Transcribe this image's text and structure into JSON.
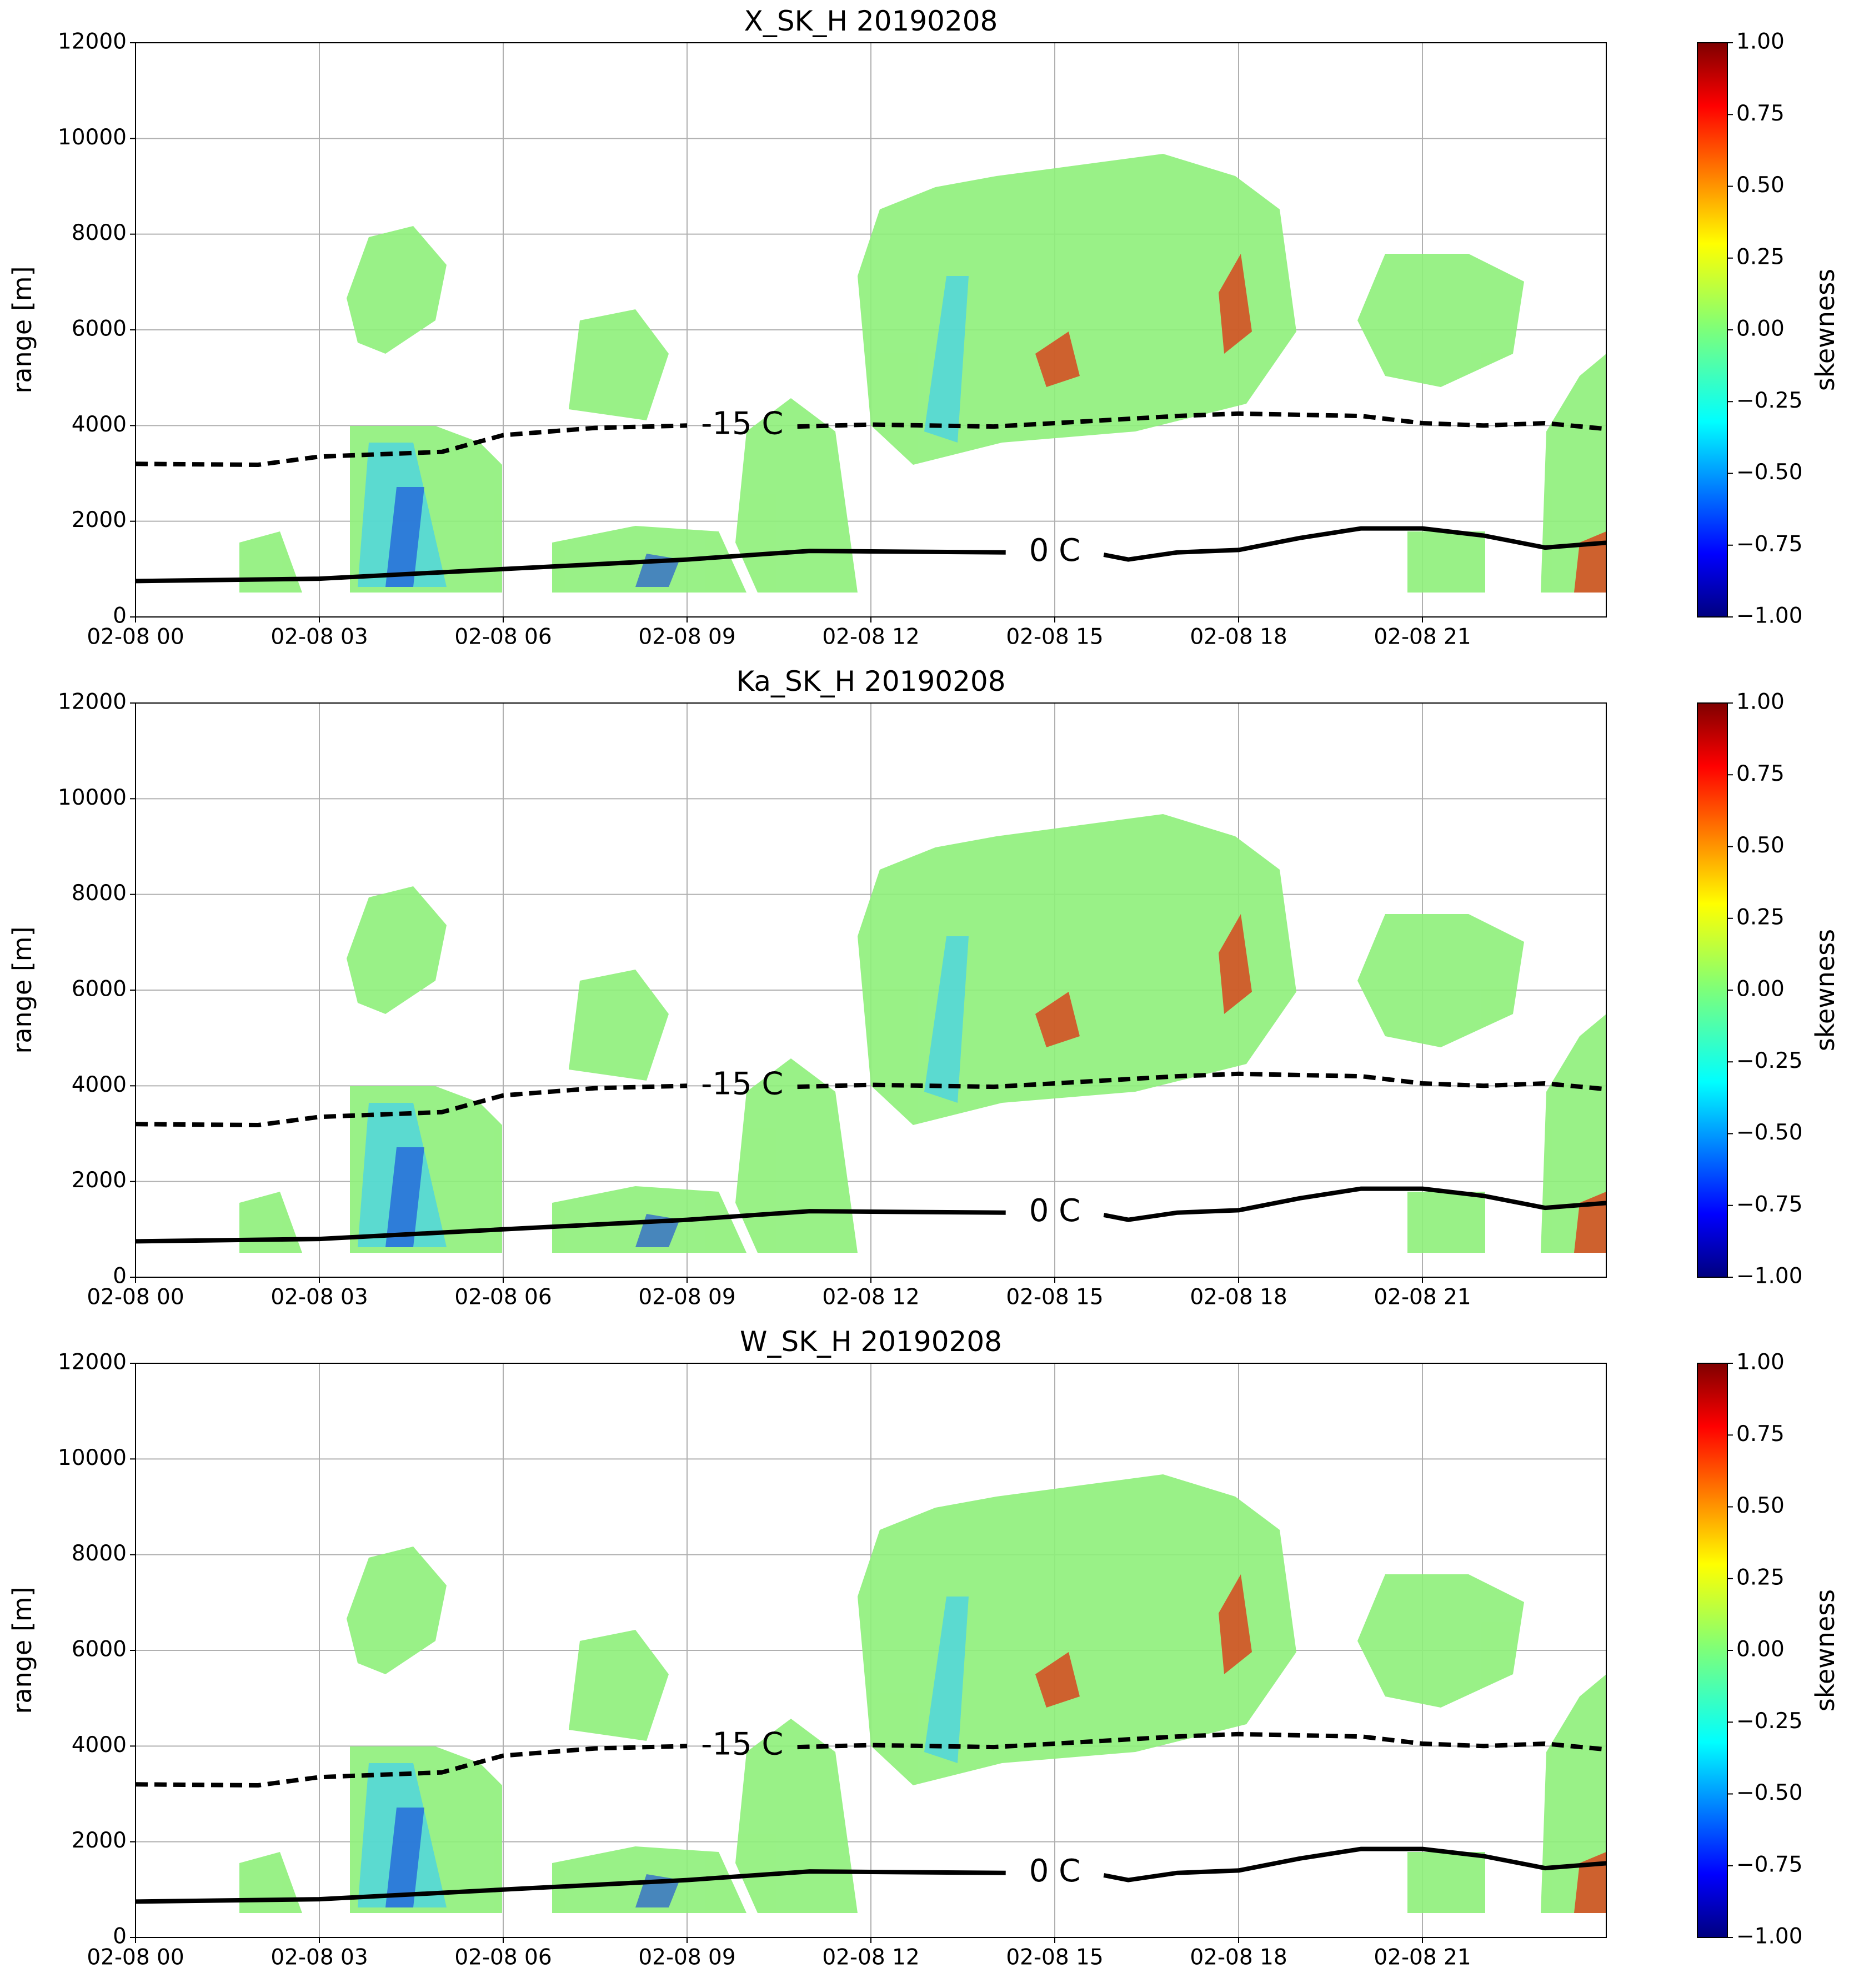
{
  "chart_data": [
    {
      "type": "heatmap",
      "title": "X_SK_H 20190208",
      "y_label": "range [m]",
      "grid": true,
      "xlim": [
        0,
        24
      ],
      "xticks": [
        {
          "value": 0,
          "label": "02-08 00"
        },
        {
          "value": 3,
          "label": "02-08 03"
        },
        {
          "value": 6,
          "label": "02-08 06"
        },
        {
          "value": 9,
          "label": "02-08 09"
        },
        {
          "value": 12,
          "label": "02-08 12"
        },
        {
          "value": 15,
          "label": "02-08 15"
        },
        {
          "value": 18,
          "label": "02-08 18"
        },
        {
          "value": 21,
          "label": "02-08 21"
        }
      ],
      "ylim": [
        0,
        12000
      ],
      "yticks": [
        0,
        2000,
        4000,
        6000,
        8000,
        10000,
        12000
      ],
      "colorbar": {
        "label": "skewness",
        "lim": [
          -1,
          1
        ],
        "ticks": [
          {
            "value": 1,
            "label": "1.00"
          },
          {
            "value": 0.75,
            "label": "0.75"
          },
          {
            "value": 0.5,
            "label": "0.50"
          },
          {
            "value": 0.25,
            "label": "0.25"
          },
          {
            "value": 0,
            "label": "0.00"
          },
          {
            "value": -0.25,
            "label": "−0.25"
          },
          {
            "value": -0.5,
            "label": "−0.50"
          },
          {
            "value": -0.75,
            "label": "−0.75"
          },
          {
            "value": -1,
            "label": "−1.00"
          }
        ]
      },
      "series": [
        {
          "style": "dashed",
          "color": "#000000",
          "x": [
            0,
            2,
            3,
            5,
            6,
            7.5,
            9,
            null,
            10.8,
            12,
            14,
            15,
            17,
            18,
            20,
            21,
            22,
            23,
            24
          ],
          "y": [
            3200,
            3180,
            3350,
            3450,
            3800,
            3950,
            4000,
            null,
            3980,
            4020,
            3980,
            4050,
            4200,
            4250,
            4200,
            4050,
            4000,
            4050,
            3930
          ],
          "label": {
            "text": "-15 C",
            "x": 9.9,
            "y": 4000
          }
        },
        {
          "style": "solid",
          "color": "#000000",
          "x": [
            0,
            3,
            6,
            9,
            11,
            12,
            14.2,
            null,
            15.8,
            16.2,
            17,
            18,
            19,
            20,
            21,
            22,
            23,
            24
          ],
          "y": [
            750,
            800,
            1000,
            1200,
            1380,
            1370,
            1350,
            null,
            1300,
            1200,
            1350,
            1400,
            1650,
            1850,
            1850,
            1700,
            1450,
            1550
          ],
          "label": {
            "text": "0 C",
            "x": 15,
            "y": 1350
          }
        }
      ]
    },
    {
      "type": "heatmap",
      "title": "Ka_SK_H 20190208",
      "y_label": "range [m]",
      "grid": true,
      "xlim": [
        0,
        24
      ],
      "xticks": [
        {
          "value": 0,
          "label": "02-08 00"
        },
        {
          "value": 3,
          "label": "02-08 03"
        },
        {
          "value": 6,
          "label": "02-08 06"
        },
        {
          "value": 9,
          "label": "02-08 09"
        },
        {
          "value": 12,
          "label": "02-08 12"
        },
        {
          "value": 15,
          "label": "02-08 15"
        },
        {
          "value": 18,
          "label": "02-08 18"
        },
        {
          "value": 21,
          "label": "02-08 21"
        }
      ],
      "ylim": [
        0,
        12000
      ],
      "yticks": [
        0,
        2000,
        4000,
        6000,
        8000,
        10000,
        12000
      ],
      "colorbar": {
        "label": "skewness",
        "lim": [
          -1,
          1
        ],
        "ticks": [
          {
            "value": 1,
            "label": "1.00"
          },
          {
            "value": 0.75,
            "label": "0.75"
          },
          {
            "value": 0.5,
            "label": "0.50"
          },
          {
            "value": 0.25,
            "label": "0.25"
          },
          {
            "value": 0,
            "label": "0.00"
          },
          {
            "value": -0.25,
            "label": "−0.25"
          },
          {
            "value": -0.5,
            "label": "−0.50"
          },
          {
            "value": -0.75,
            "label": "−0.75"
          },
          {
            "value": -1,
            "label": "−1.00"
          }
        ]
      },
      "series": [
        {
          "style": "dashed",
          "color": "#000000",
          "x": [
            0,
            2,
            3,
            5,
            6,
            7.5,
            9,
            null,
            10.8,
            12,
            14,
            15,
            17,
            18,
            20,
            21,
            22,
            23,
            24
          ],
          "y": [
            3200,
            3180,
            3350,
            3450,
            3800,
            3950,
            4000,
            null,
            3980,
            4020,
            3980,
            4050,
            4200,
            4250,
            4200,
            4050,
            4000,
            4050,
            3930
          ],
          "label": {
            "text": "-15 C",
            "x": 9.9,
            "y": 4000
          }
        },
        {
          "style": "solid",
          "color": "#000000",
          "x": [
            0,
            3,
            6,
            9,
            11,
            12,
            14.2,
            null,
            15.8,
            16.2,
            17,
            18,
            19,
            20,
            21,
            22,
            23,
            24
          ],
          "y": [
            750,
            800,
            1000,
            1200,
            1380,
            1370,
            1350,
            null,
            1300,
            1200,
            1350,
            1400,
            1650,
            1850,
            1850,
            1700,
            1450,
            1550
          ],
          "label": {
            "text": "0 C",
            "x": 15,
            "y": 1350
          }
        }
      ]
    },
    {
      "type": "heatmap",
      "title": "W_SK_H 20190208",
      "y_label": "range [m]",
      "grid": true,
      "xlim": [
        0,
        24
      ],
      "xticks": [
        {
          "value": 0,
          "label": "02-08 00"
        },
        {
          "value": 3,
          "label": "02-08 03"
        },
        {
          "value": 6,
          "label": "02-08 06"
        },
        {
          "value": 9,
          "label": "02-08 09"
        },
        {
          "value": 12,
          "label": "02-08 12"
        },
        {
          "value": 15,
          "label": "02-08 15"
        },
        {
          "value": 18,
          "label": "02-08 18"
        },
        {
          "value": 21,
          "label": "02-08 21"
        }
      ],
      "ylim": [
        0,
        12000
      ],
      "yticks": [
        0,
        2000,
        4000,
        6000,
        8000,
        10000,
        12000
      ],
      "colorbar": {
        "label": "skewness",
        "lim": [
          -1,
          1
        ],
        "ticks": [
          {
            "value": 1,
            "label": "1.00"
          },
          {
            "value": 0.75,
            "label": "0.75"
          },
          {
            "value": 0.5,
            "label": "0.50"
          },
          {
            "value": 0.25,
            "label": "0.25"
          },
          {
            "value": 0,
            "label": "0.00"
          },
          {
            "value": -0.25,
            "label": "−0.25"
          },
          {
            "value": -0.5,
            "label": "−0.50"
          },
          {
            "value": -0.75,
            "label": "−0.75"
          },
          {
            "value": -1,
            "label": "−1.00"
          }
        ]
      },
      "series": [
        {
          "style": "dashed",
          "color": "#000000",
          "x": [
            0,
            2,
            3,
            5,
            6,
            7.5,
            9,
            null,
            10.8,
            12,
            14,
            15,
            17,
            18,
            20,
            21,
            22,
            23,
            24
          ],
          "y": [
            3200,
            3180,
            3350,
            3450,
            3800,
            3950,
            4000,
            null,
            3980,
            4020,
            3980,
            4050,
            4200,
            4250,
            4200,
            4050,
            4000,
            4050,
            3930
          ],
          "label": {
            "text": "-15 C",
            "x": 9.9,
            "y": 4000
          }
        },
        {
          "style": "solid",
          "color": "#000000",
          "x": [
            0,
            3,
            6,
            9,
            11,
            12,
            14.2,
            null,
            15.8,
            16.2,
            17,
            18,
            19,
            20,
            21,
            22,
            23,
            24
          ],
          "y": [
            750,
            800,
            1000,
            1200,
            1380,
            1370,
            1350,
            null,
            1300,
            1200,
            1350,
            1400,
            1650,
            1850,
            1850,
            1700,
            1450,
            1550
          ],
          "label": {
            "text": "0 C",
            "x": 15,
            "y": 1350
          }
        }
      ]
    }
  ]
}
